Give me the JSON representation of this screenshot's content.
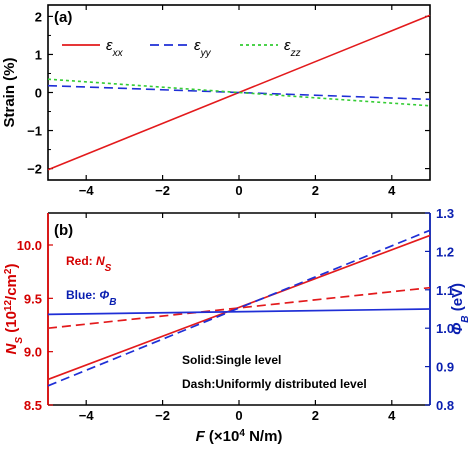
{
  "colors": {
    "red": "#e31a1c",
    "blue": "#1f2fd6",
    "green": "#33cc33",
    "red_axis": "#d40000",
    "blue_axis": "#0a1fb0"
  },
  "chart_data": [
    {
      "type": "line",
      "panel_label": "(a)",
      "ylabel": "Strain (%)",
      "xlim": [
        -5,
        5
      ],
      "ylim": [
        -2.3,
        2.3
      ],
      "xticks": [
        -4,
        -2,
        0,
        2,
        4
      ],
      "yticks": [
        -2,
        -1,
        0,
        1,
        2
      ],
      "grid": false,
      "legend_position": "top",
      "series": [
        {
          "name": "εxx",
          "style": "solid",
          "color": "#e31a1c",
          "x": [
            -5,
            5
          ],
          "y": [
            -2.03,
            2.03
          ]
        },
        {
          "name": "εyy",
          "style": "dashed",
          "color": "#1f2fd6",
          "x": [
            -5,
            5
          ],
          "y": [
            0.18,
            -0.18
          ]
        },
        {
          "name": "εzz",
          "style": "dotted",
          "color": "#33cc33",
          "x": [
            -5,
            5
          ],
          "y": [
            0.35,
            -0.35
          ]
        }
      ]
    },
    {
      "type": "line",
      "panel_label": "(b)",
      "xlabel": "F (×10⁴ N/m)",
      "ylabel_left": "NS (10¹²/cm²)",
      "ylabel_right": "ΦB (eV)",
      "xlim": [
        -5,
        5
      ],
      "ylim_left": [
        8.5,
        10.3
      ],
      "ylim_right": [
        0.8,
        1.3
      ],
      "xticks": [
        -4,
        -2,
        0,
        2,
        4
      ],
      "yticks_left": [
        8.5,
        9.0,
        9.5,
        10.0
      ],
      "yticks_right": [
        0.8,
        0.9,
        1.0,
        1.1,
        1.2,
        1.3
      ],
      "grid": false,
      "annotations": {
        "red": "Red: NS",
        "blue": "Blue: ΦB",
        "solid": "Solid:Single level",
        "dash": "Dash:Uniformly distributed level"
      },
      "series": [
        {
          "name": "NS single level",
          "axis": "left",
          "style": "solid",
          "color": "#e31a1c",
          "x": [
            -5,
            5
          ],
          "y": [
            8.74,
            10.09
          ]
        },
        {
          "name": "NS uniformly distributed level",
          "axis": "left",
          "style": "dashed",
          "color": "#e31a1c",
          "x": [
            -5,
            5
          ],
          "y": [
            9.22,
            9.6
          ]
        },
        {
          "name": "ΦB single level",
          "axis": "right",
          "style": "solid",
          "color": "#1f2fd6",
          "x": [
            -5,
            5
          ],
          "y": [
            1.036,
            1.05
          ]
        },
        {
          "name": "ΦB uniformly distributed level",
          "axis": "right",
          "style": "dashed",
          "color": "#1f2fd6",
          "x": [
            -5,
            5
          ],
          "y": [
            0.85,
            1.255
          ]
        }
      ]
    }
  ]
}
